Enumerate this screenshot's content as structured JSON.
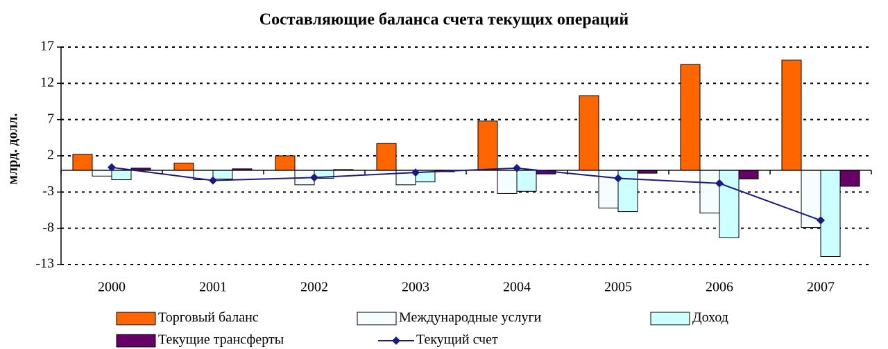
{
  "chart_data": {
    "type": "bar",
    "title": "Составляющие баланса счета текущих операций",
    "y_label": "млрд. долл.",
    "categories": [
      "2000",
      "2001",
      "2002",
      "2003",
      "2004",
      "2005",
      "2006",
      "2007"
    ],
    "series": [
      {
        "name": "Торговый баланс",
        "type": "bar",
        "color": "#ff6600",
        "values": [
          2.2,
          1.0,
          2.0,
          3.7,
          6.8,
          10.3,
          14.6,
          15.2
        ]
      },
      {
        "name": "Международные услуги",
        "type": "bar",
        "color": "#f5fdff",
        "values": [
          -0.8,
          -1.3,
          -2.0,
          -2.0,
          -3.2,
          -5.2,
          -5.9,
          -7.9
        ]
      },
      {
        "name": "Доход",
        "type": "bar",
        "color": "#ccffff",
        "values": [
          -1.3,
          -1.2,
          -1.1,
          -1.6,
          -2.9,
          -5.7,
          -9.3,
          -11.9
        ]
      },
      {
        "name": "Текущие трансферты",
        "type": "bar",
        "color": "#660066",
        "values": [
          0.3,
          0.2,
          0.1,
          -0.2,
          -0.5,
          -0.4,
          -1.2,
          -2.2
        ]
      },
      {
        "name": "Текущий счет",
        "type": "line",
        "color": "#1a1a80",
        "values": [
          0.4,
          -1.4,
          -1.0,
          -0.3,
          0.3,
          -1.1,
          -1.8,
          -6.9
        ]
      }
    ],
    "ylim": [
      -13,
      17
    ],
    "yticks": [
      -13,
      -8,
      -3,
      2,
      7,
      12,
      17
    ],
    "grid": true
  }
}
